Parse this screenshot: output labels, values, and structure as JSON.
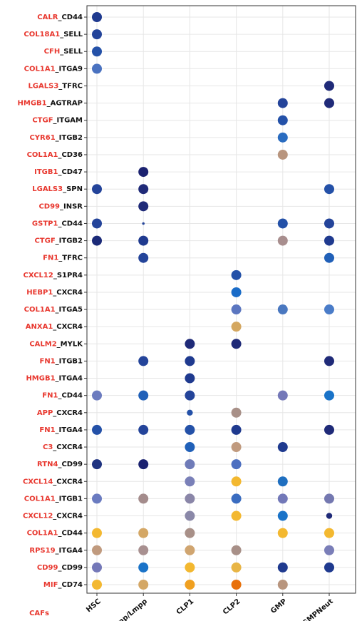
{
  "chart_data": {
    "type": "dotplot",
    "ylabel": "CAFs",
    "rows": [
      {
        "ligand": "CALR",
        "receptor": "_CD44"
      },
      {
        "ligand": "COL18A1",
        "receptor": "_SELL"
      },
      {
        "ligand": "CFH",
        "receptor": "_SELL"
      },
      {
        "ligand": "COL1A1",
        "receptor": "_ITGA9"
      },
      {
        "ligand": "LGALS3",
        "receptor": "_TFRC"
      },
      {
        "ligand": "HMGB1",
        "receptor": "_AGTRAP"
      },
      {
        "ligand": "CTGF",
        "receptor": "_ITGAM"
      },
      {
        "ligand": "CYR61",
        "receptor": "_ITGB2"
      },
      {
        "ligand": "COL1A1",
        "receptor": "_CD36"
      },
      {
        "ligand": "ITGB1",
        "receptor": "_CD47"
      },
      {
        "ligand": "LGALS3",
        "receptor": "_SPN"
      },
      {
        "ligand": "CD99",
        "receptor": "_INSR"
      },
      {
        "ligand": "GSTP1",
        "receptor": "_CD44"
      },
      {
        "ligand": "CTGF",
        "receptor": "_ITGB2"
      },
      {
        "ligand": "FN1",
        "receptor": "_TFRC"
      },
      {
        "ligand": "CXCL12",
        "receptor": "_S1PR4"
      },
      {
        "ligand": "HEBP1",
        "receptor": "_CXCR4"
      },
      {
        "ligand": "COL1A1",
        "receptor": "_ITGA5"
      },
      {
        "ligand": "ANXA1",
        "receptor": "_CXCR4"
      },
      {
        "ligand": "CALM2",
        "receptor": "_MYLK"
      },
      {
        "ligand": "FN1",
        "receptor": "_ITGB1"
      },
      {
        "ligand": "HMGB1",
        "receptor": "_ITGA4"
      },
      {
        "ligand": "FN1",
        "receptor": "_CD44"
      },
      {
        "ligand": "APP",
        "receptor": "_CXCR4"
      },
      {
        "ligand": "FN1",
        "receptor": "_ITGA4"
      },
      {
        "ligand": "C3",
        "receptor": "_CXCR4"
      },
      {
        "ligand": "RTN4",
        "receptor": "_CD99"
      },
      {
        "ligand": "CXCL14",
        "receptor": "_CXCR4"
      },
      {
        "ligand": "COL1A1",
        "receptor": "_ITGB1"
      },
      {
        "ligand": "CXCL12",
        "receptor": "_CXCR4"
      },
      {
        "ligand": "COL1A1",
        "receptor": "_CD44"
      },
      {
        "ligand": "RPS19",
        "receptor": "_ITGA4"
      },
      {
        "ligand": "CD99",
        "receptor": "_CD99"
      },
      {
        "ligand": "MIF",
        "receptor": "_CD74"
      }
    ],
    "series": [
      {
        "name": "HSC",
        "values": [
          1,
          1,
          1,
          1,
          null,
          null,
          null,
          null,
          null,
          null,
          1,
          null,
          1,
          1,
          null,
          null,
          null,
          null,
          null,
          null,
          null,
          null,
          1,
          null,
          1,
          null,
          1,
          null,
          1,
          null,
          1,
          1,
          1,
          1
        ],
        "colors": [
          "#1f3a8f",
          "#24449a",
          "#2451a8",
          "#4a72c0",
          null,
          null,
          null,
          null,
          null,
          null,
          "#24449a",
          null,
          "#24449a",
          "#1b2a78",
          null,
          null,
          null,
          null,
          null,
          null,
          null,
          null,
          "#6b7bbf",
          null,
          "#2451a8",
          null,
          "#1f3380",
          null,
          "#6a7bc0",
          null,
          "#f3b830",
          "#c09a7e",
          "#7478b8",
          "#f3b830"
        ]
      },
      {
        "name": "Cmp/Lmpp",
        "values": [
          null,
          null,
          null,
          null,
          null,
          null,
          null,
          null,
          null,
          1,
          1,
          1,
          0.25,
          1,
          1,
          null,
          null,
          null,
          null,
          null,
          1,
          null,
          1,
          null,
          1,
          null,
          1,
          null,
          1,
          null,
          1,
          1,
          1,
          1
        ],
        "colors": [
          null,
          null,
          null,
          null,
          null,
          null,
          null,
          null,
          null,
          "#1b2270",
          "#1f2a78",
          "#1f2a78",
          "#24449a",
          "#1f3a8f",
          "#24449a",
          null,
          null,
          null,
          null,
          null,
          "#24449a",
          null,
          "#2060b8",
          null,
          "#24449a",
          null,
          "#1b2270",
          null,
          "#a48c8c",
          null,
          "#d4a765",
          "#a89090",
          "#1a73c8",
          "#d4a765"
        ]
      },
      {
        "name": "CLP1",
        "values": [
          null,
          null,
          null,
          null,
          null,
          null,
          null,
          null,
          null,
          null,
          null,
          null,
          null,
          null,
          null,
          null,
          null,
          null,
          null,
          1,
          1,
          1,
          1,
          0.6,
          1,
          1,
          1,
          1,
          1,
          1,
          1,
          1,
          1,
          1
        ],
        "colors": [
          null,
          null,
          null,
          null,
          null,
          null,
          null,
          null,
          null,
          null,
          null,
          null,
          null,
          null,
          null,
          null,
          null,
          null,
          null,
          "#1f2a78",
          "#1f3a8f",
          "#1f3a8f",
          "#24449a",
          "#2451a8",
          "#2451a8",
          "#2060b8",
          "#6f7bb8",
          "#7a80b8",
          "#8a86a8",
          "#8a88a8",
          "#a89088",
          "#d0a570",
          "#f3b830",
          "#f0a020"
        ]
      },
      {
        "name": "CLP2",
        "values": [
          null,
          null,
          null,
          null,
          null,
          null,
          null,
          null,
          null,
          null,
          null,
          null,
          null,
          null,
          null,
          1,
          1,
          1,
          1,
          1,
          null,
          null,
          null,
          1,
          1,
          1,
          1,
          1,
          1,
          1,
          null,
          1,
          1,
          1
        ],
        "colors": [
          null,
          null,
          null,
          null,
          null,
          null,
          null,
          null,
          null,
          null,
          null,
          null,
          null,
          null,
          null,
          "#2451a8",
          "#1a6cc8",
          "#5b76c0",
          "#d4a760",
          "#1f2a78",
          null,
          null,
          null,
          "#a89088",
          "#1f3a8f",
          "#c09a7e",
          "#4d6fc0",
          "#f3b830",
          "#3a6cc0",
          "#f3b830",
          null,
          "#a89088",
          "#e8b545",
          "#e8700a"
        ]
      },
      {
        "name": "GMP",
        "values": [
          null,
          null,
          null,
          null,
          null,
          1,
          1,
          1,
          1,
          null,
          null,
          null,
          1,
          1,
          null,
          null,
          null,
          1,
          null,
          null,
          null,
          null,
          1,
          null,
          null,
          1,
          null,
          1,
          1,
          1,
          1,
          null,
          1,
          1
        ],
        "colors": [
          null,
          null,
          null,
          null,
          null,
          "#24449a",
          "#2451a8",
          "#2a6cc0",
          "#b8957e",
          null,
          null,
          null,
          "#2451a8",
          "#a88e8e",
          null,
          null,
          null,
          "#4a78c0",
          null,
          null,
          null,
          null,
          "#7478b8",
          null,
          null,
          "#1f3a8f",
          null,
          "#1f6fc0",
          "#7278b8",
          "#1a73c8",
          "#f3b830",
          null,
          "#1f3a8f",
          "#b8957e"
        ]
      },
      {
        "name": "GMPNeut",
        "values": [
          null,
          null,
          null,
          null,
          1,
          1,
          null,
          null,
          null,
          null,
          1,
          null,
          1,
          1,
          1,
          null,
          null,
          1,
          null,
          null,
          1,
          null,
          1,
          null,
          1,
          null,
          null,
          null,
          1,
          0.6,
          1,
          1,
          1,
          null
        ],
        "colors": [
          null,
          null,
          null,
          null,
          "#1f2a78",
          "#1f2a78",
          null,
          null,
          null,
          null,
          "#2451a8",
          null,
          "#24449a",
          "#1f3a8f",
          "#2060b8",
          null,
          null,
          "#4a7cc8",
          null,
          null,
          "#1f2a78",
          null,
          "#1a73c8",
          null,
          "#1f2a78",
          null,
          null,
          null,
          "#7478b0",
          "#1f2a78",
          "#f3b830",
          "#7a7eb8",
          "#1f3a8f",
          null
        ]
      }
    ],
    "ligand_color": "#e8382f",
    "receptor_color": "#111111",
    "grid": true
  }
}
